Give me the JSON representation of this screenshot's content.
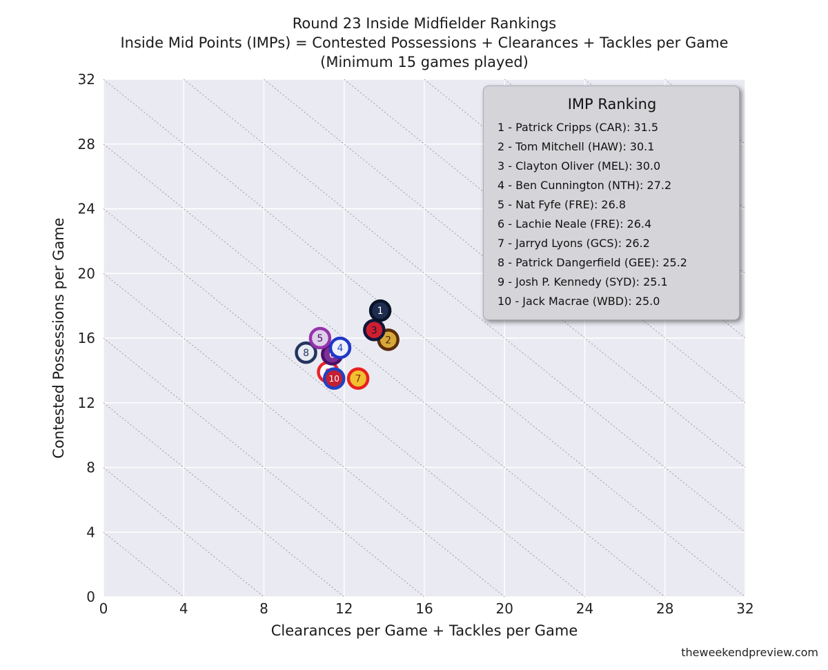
{
  "page": {
    "watermark": "theweekendpreview.com"
  },
  "chart_data": {
    "type": "scatter",
    "title_lines": [
      "Round 23 Inside Midfielder Rankings",
      "Inside Mid Points (IMPs) = Contested Possessions + Clearances + Tackles per Game",
      "(Minimum 15 games played)"
    ],
    "xlabel": "Clearances per Game + Tackles per Game",
    "ylabel": "Contested Possessions per Game",
    "xlim": [
      0,
      32
    ],
    "ylim": [
      0,
      32
    ],
    "xticks": [
      0,
      4,
      8,
      12,
      16,
      20,
      24,
      28,
      32
    ],
    "yticks": [
      0,
      4,
      8,
      12,
      16,
      20,
      24,
      28,
      32
    ],
    "grid": true,
    "plot_bg": "#eaeaf2",
    "grid_color": "#ffffff",
    "tick_color": "#222222",
    "diagonal_lines": {
      "values": [
        4,
        8,
        12,
        16,
        20,
        24,
        28,
        32,
        36,
        40,
        44,
        48,
        52,
        56,
        60
      ],
      "color": "#9a9a9a",
      "style": "dotted"
    },
    "legend": {
      "title": "IMP Ranking",
      "position": "upper right",
      "entries": [
        "1 - Patrick Cripps (CAR): 31.5",
        "2 - Tom Mitchell (HAW): 30.1",
        "3 - Clayton Oliver (MEL): 30.0",
        "4 - Ben Cunnington (NTH): 27.2",
        "5 - Nat Fyfe (FRE): 26.8",
        "6 - Lachie Neale (FRE): 26.4",
        "7 - Jarryd Lyons (GCS): 26.2",
        "8 - Patrick Dangerfield (GEE): 25.2",
        "9 - Josh P. Kennedy (SYD): 25.1",
        "10 - Jack Macrae (WBD): 25.0"
      ]
    },
    "points": [
      {
        "rank": 1,
        "player": "Patrick Cripps",
        "team": "CAR",
        "imp": "31.5",
        "x": 13.8,
        "y": 17.7,
        "fill": "#1e2d4f",
        "border": "#0a1428",
        "text_color": "#ffffff"
      },
      {
        "rank": 2,
        "player": "Tom Mitchell",
        "team": "HAW",
        "imp": "30.1",
        "x": 14.2,
        "y": 15.9,
        "fill": "#d6a839",
        "border": "#5a2d0c",
        "text_color": "#4a2408"
      },
      {
        "rank": 3,
        "player": "Clayton Oliver",
        "team": "MEL",
        "imp": "30.0",
        "x": 13.5,
        "y": 16.5,
        "fill": "#d01e2e",
        "border": "#10173a",
        "text_color": "#10173a"
      },
      {
        "rank": 4,
        "player": "Ben Cunnington",
        "team": "NTH",
        "imp": "27.2",
        "x": 11.8,
        "y": 15.4,
        "fill": "#eef1fa",
        "border": "#2038c8",
        "text_color": "#2038c8"
      },
      {
        "rank": 5,
        "player": "Nat Fyfe",
        "team": "FRE",
        "imp": "26.8",
        "x": 10.8,
        "y": 16.0,
        "fill": "#ddd0ea",
        "border": "#9633ad",
        "text_color": "#43105e"
      },
      {
        "rank": 6,
        "player": "Lachie Neale",
        "team": "FRE",
        "imp": "26.4",
        "x": 11.4,
        "y": 15.0,
        "fill": "#7c2f96",
        "border": "#4a1168",
        "text_color": "#ffffff"
      },
      {
        "rank": 7,
        "player": "Jarryd Lyons",
        "team": "GCS",
        "imp": "26.2",
        "x": 12.7,
        "y": 13.5,
        "fill": "#efc12e",
        "border": "#e8201e",
        "text_color": "#8f1d12"
      },
      {
        "rank": 8,
        "player": "Patrick Dangerfield",
        "team": "GEE",
        "imp": "25.2",
        "x": 10.1,
        "y": 15.1,
        "fill": "#e8ebf2",
        "border": "#24355e",
        "text_color": "#24355e"
      },
      {
        "rank": 9,
        "player": "Josh P. Kennedy",
        "team": "SYD",
        "imp": "25.1",
        "x": 11.2,
        "y": 13.9,
        "fill": "#ffffff",
        "border": "#e8232a",
        "text_color": "#e8232a"
      },
      {
        "rank": 10,
        "player": "Jack Macrae",
        "team": "WBD",
        "imp": "25.0",
        "x": 11.5,
        "y": 13.5,
        "fill": "#c51f30",
        "border": "#2141c4",
        "text_color": "#ffffff"
      }
    ],
    "draw_order": [
      9,
      2,
      8,
      6,
      5,
      4,
      7,
      10,
      3,
      1
    ]
  }
}
